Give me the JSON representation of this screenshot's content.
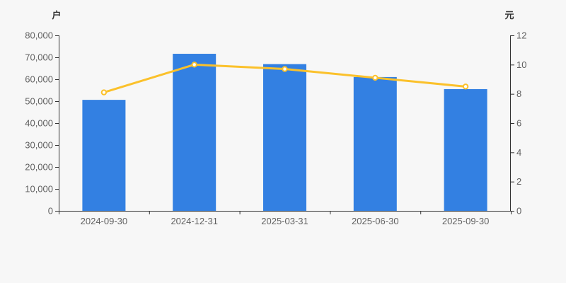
{
  "page": {
    "background": "#f7f7f7"
  },
  "chart_data": {
    "type": "bar",
    "subtype": "bar-and-line-dual-axis",
    "categories": [
      "2024-09-30",
      "2024-12-31",
      "2025-03-31",
      "2025-06-30",
      "2025-09-30"
    ],
    "series": [
      {
        "name": "bar-series",
        "type": "bar",
        "axis": "left",
        "values": [
          50600,
          71600,
          66900,
          61000,
          55500
        ],
        "color": "#3380e2"
      },
      {
        "name": "line-series",
        "type": "line",
        "axis": "right",
        "values": [
          8.1,
          10.0,
          9.7,
          9.1,
          8.5
        ],
        "color": "#fbc12b",
        "marker": "hollow-circle",
        "marker_fill": "#ffffff"
      }
    ],
    "left_axis": {
      "unit_label": "户",
      "min": 0,
      "max": 80000,
      "tick_step": 10000,
      "tick_labels": [
        "0",
        "10,000",
        "20,000",
        "30,000",
        "40,000",
        "50,000",
        "60,000",
        "70,000",
        "80,000"
      ]
    },
    "right_axis": {
      "unit_label": "元",
      "min": 0,
      "max": 12,
      "tick_step": 2,
      "tick_labels": [
        "0",
        "2",
        "4",
        "6",
        "8",
        "10",
        "12"
      ]
    },
    "title": "",
    "xlabel": "",
    "ylabel_left": "户",
    "ylabel_right": "元",
    "grid": false,
    "legend": false,
    "axis_color": "#333333",
    "tick_label_color": "#616161",
    "unit_label_color": "#333333"
  }
}
